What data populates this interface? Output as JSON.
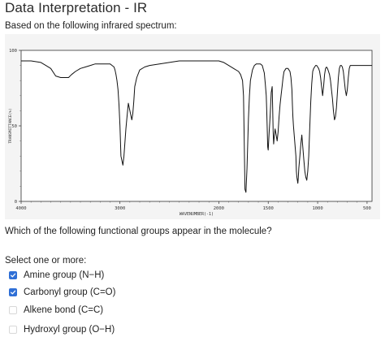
{
  "page": {
    "title": "Data Interpretation - IR",
    "prompt": "Based on the following infrared spectrum:",
    "question": "Which of the following functional groups appear in the molecule?",
    "select_label": "Select one or more:"
  },
  "chart_data": {
    "type": "line",
    "title": "",
    "xlabel": "WAVENUMBER(-1)",
    "ylabel": "TRANSMITTANCE(%)",
    "xlim": [
      4000,
      450
    ],
    "ylim": [
      0,
      100
    ],
    "x_ticks": [
      4000,
      3000,
      2000,
      1500,
      1000,
      500
    ],
    "x_tick_labels": [
      "4000",
      "3000",
      "2000",
      "1500",
      "1000",
      "500"
    ],
    "y_ticks": [
      0,
      50,
      100
    ],
    "y_tick_labels": [
      "0",
      "50",
      "100"
    ],
    "grid": false,
    "series": [
      {
        "x": [
          4000,
          3900,
          3800,
          3750,
          3700,
          3650,
          3600,
          3560,
          3520,
          3490,
          3450,
          3400,
          3350,
          3300,
          3250,
          3200,
          3150,
          3100,
          3080,
          3060,
          3050,
          3040,
          3030,
          3020,
          3010,
          3000,
          2990,
          2970,
          2960,
          2940,
          2930,
          2915,
          2900,
          2880,
          2870,
          2860,
          2850,
          2830,
          2800,
          2750,
          2700,
          2600,
          2500,
          2400,
          2300,
          2200,
          2100,
          2000,
          1950,
          1900,
          1850,
          1800,
          1780,
          1760,
          1750,
          1745,
          1735,
          1725,
          1715,
          1700,
          1690,
          1680,
          1660,
          1640,
          1620,
          1600,
          1580,
          1560,
          1540,
          1530,
          1520,
          1515,
          1510,
          1505,
          1500,
          1495,
          1490,
          1485,
          1480,
          1475,
          1470,
          1460,
          1455,
          1450,
          1445,
          1440,
          1430,
          1420,
          1410,
          1400,
          1390,
          1380,
          1370,
          1360,
          1350,
          1340,
          1330,
          1320,
          1310,
          1300,
          1290,
          1280,
          1270,
          1260,
          1255,
          1250,
          1245,
          1240,
          1230,
          1220,
          1215,
          1210,
          1205,
          1200,
          1195,
          1190,
          1180,
          1170,
          1160,
          1150,
          1140,
          1130,
          1120,
          1110,
          1100,
          1090,
          1080,
          1070,
          1060,
          1050,
          1040,
          1030,
          1020,
          1010,
          1000,
          990,
          980,
          970,
          960,
          950,
          940,
          930,
          920,
          910,
          900,
          890,
          880,
          870,
          860,
          850,
          840,
          830,
          820,
          810,
          800,
          790,
          780,
          770,
          760,
          750,
          740,
          730,
          720,
          710,
          700,
          690,
          680,
          670,
          650,
          600,
          550,
          500,
          450
        ],
        "y": [
          93,
          93,
          92,
          90,
          88,
          83,
          82,
          82,
          82,
          84,
          86,
          88,
          89,
          90,
          91,
          91,
          91,
          91,
          90,
          89,
          87,
          84,
          80,
          74,
          64,
          50,
          30,
          24,
          30,
          48,
          55,
          65,
          60,
          54,
          58,
          66,
          76,
          82,
          87,
          89,
          90,
          91,
          92,
          93,
          93,
          93,
          93,
          93,
          92,
          90,
          88,
          86,
          84,
          80,
          70,
          50,
          8,
          6,
          22,
          55,
          70,
          80,
          87,
          90,
          91,
          91,
          91,
          90,
          85,
          78,
          70,
          60,
          48,
          36,
          34,
          40,
          46,
          52,
          58,
          65,
          72,
          76,
          62,
          46,
          38,
          42,
          48,
          44,
          40,
          46,
          56,
          64,
          70,
          76,
          82,
          86,
          87,
          88,
          88,
          88,
          87,
          86,
          82,
          74,
          64,
          56,
          50,
          46,
          38,
          30,
          20,
          16,
          14,
          12,
          16,
          22,
          30,
          38,
          44,
          36,
          28,
          20,
          16,
          14,
          20,
          30,
          48,
          66,
          78,
          86,
          88,
          89,
          90,
          90,
          89,
          88,
          86,
          82,
          76,
          70,
          76,
          84,
          88,
          89,
          88,
          86,
          84,
          80,
          74,
          68,
          60,
          54,
          56,
          62,
          72,
          82,
          88,
          90,
          90,
          89,
          86,
          80,
          74,
          70,
          74,
          82,
          88,
          90,
          90,
          90,
          90,
          90,
          90
        ]
      }
    ]
  },
  "options": [
    {
      "label": "Amine group (N−H)",
      "checked": true
    },
    {
      "label": "Carbonyl group (C=O)",
      "checked": true
    },
    {
      "label": "Alkene bond (C=C)",
      "checked": false
    },
    {
      "label": "Hydroxyl group (O−H)",
      "checked": false
    }
  ],
  "colors": {
    "checkbox_checked": "#2f6fd6",
    "checkbox_unchecked_border": "#d8d8d8",
    "spectrum_background": "#f4f4f4"
  }
}
